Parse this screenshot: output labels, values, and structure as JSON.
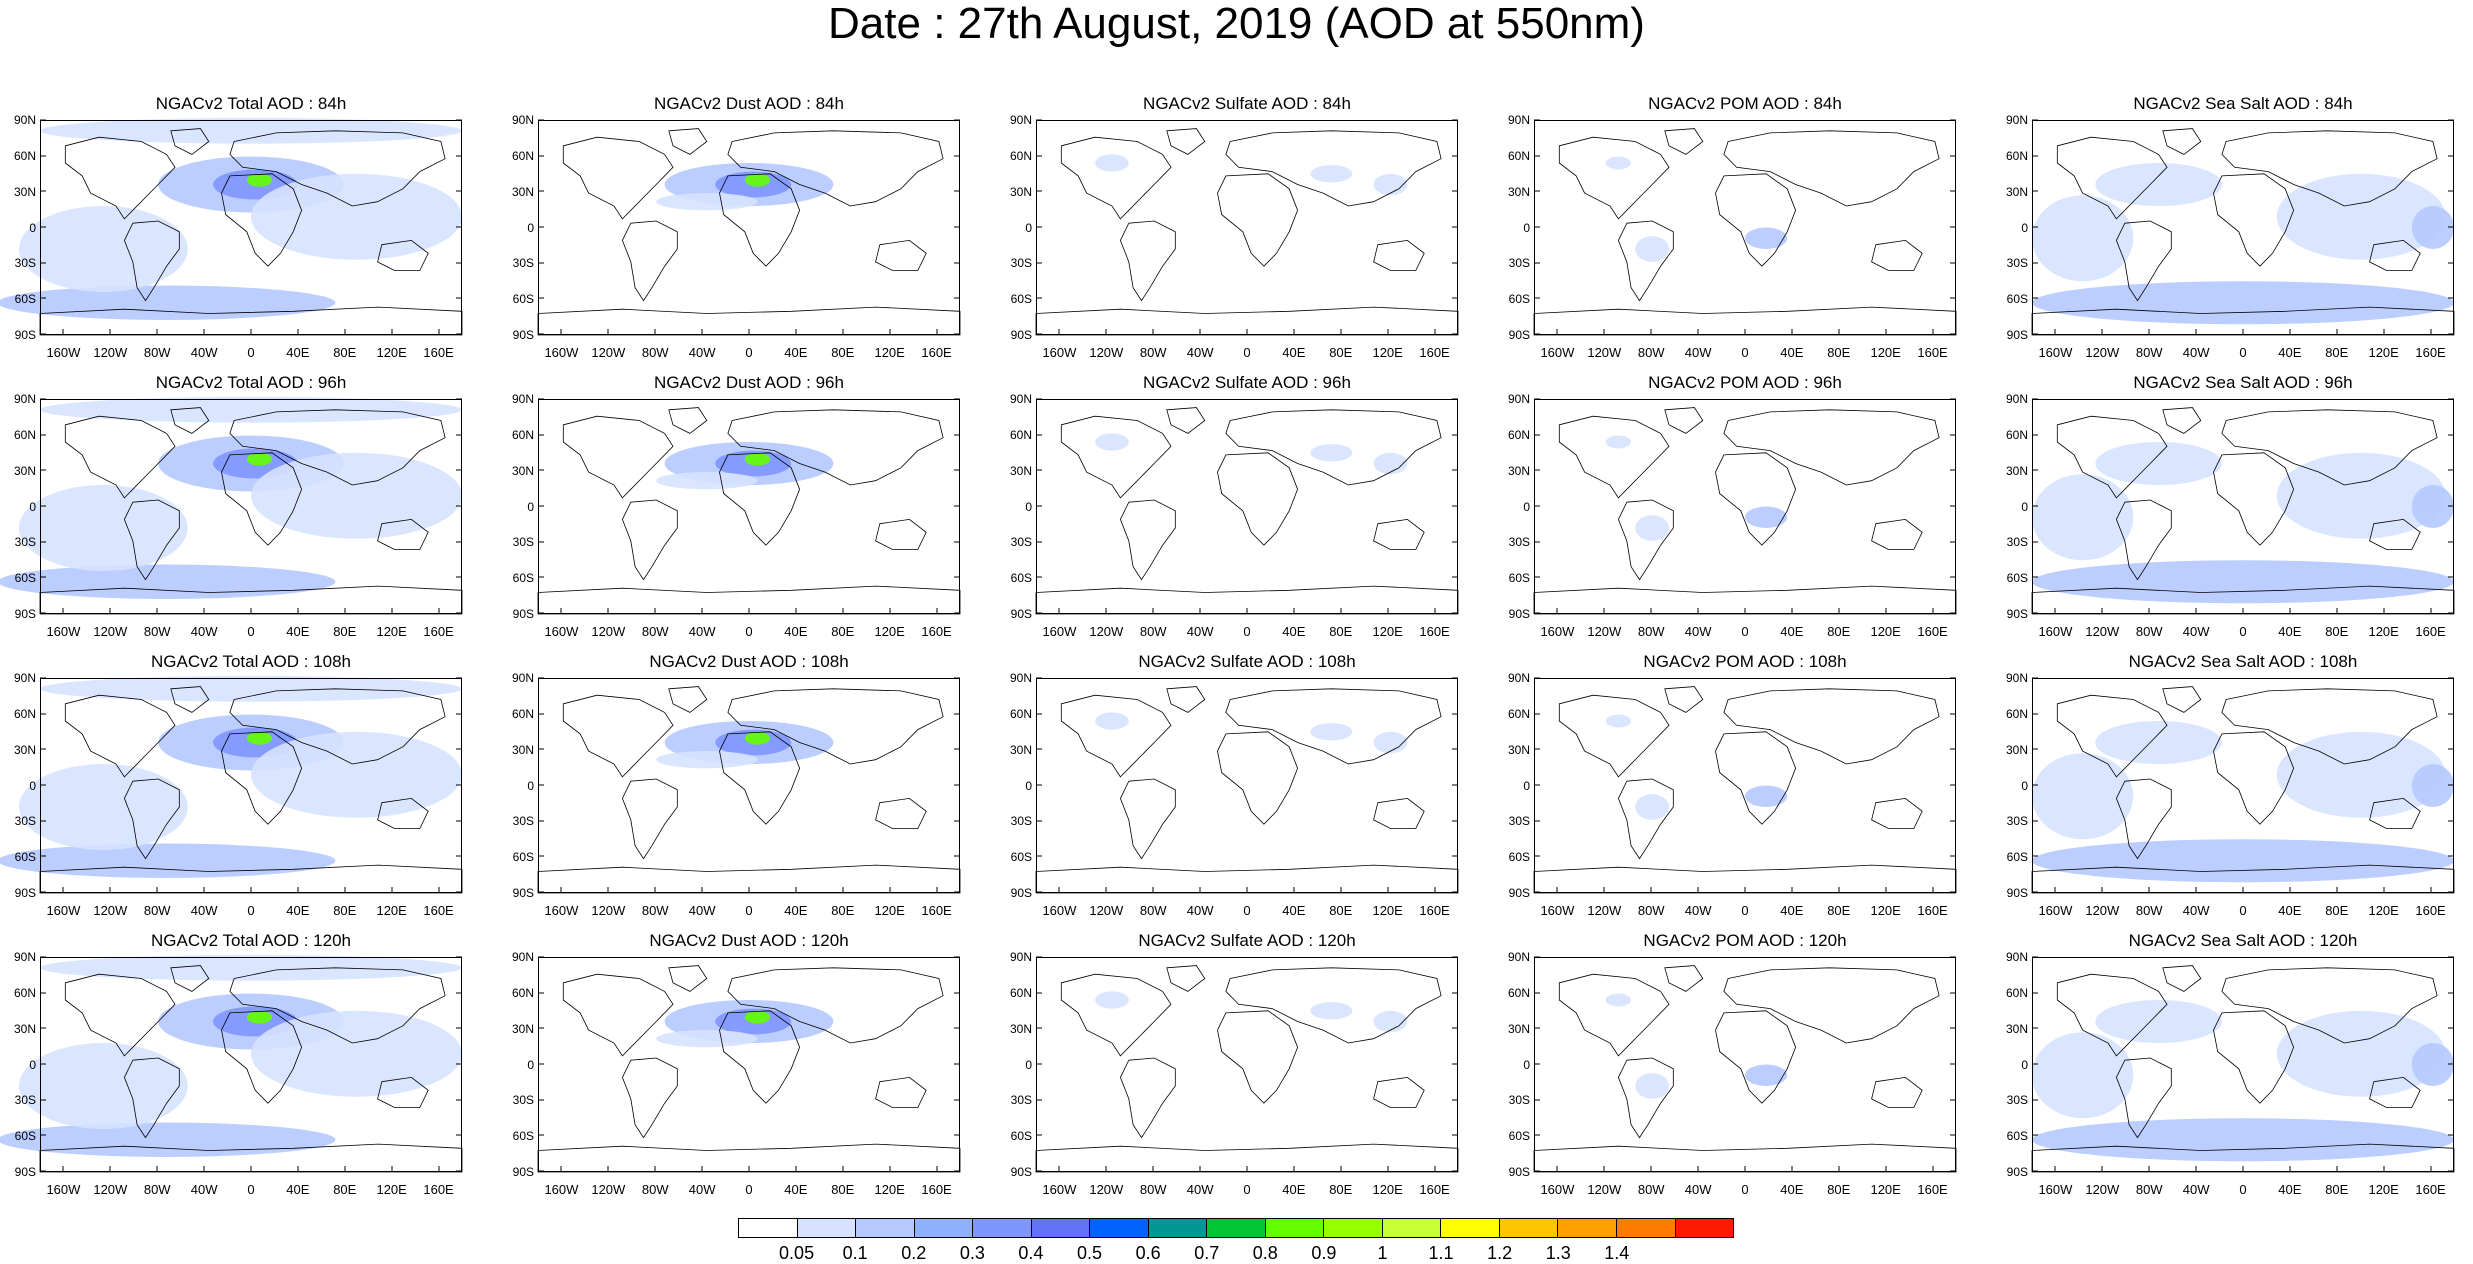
{
  "title": "Date : 27th August, 2019 (AOD at 550nm)",
  "rows": [
    [
      "NGACv2 Total AOD : 84h",
      "NGACv2 Dust AOD : 84h",
      "NGACv2 Sulfate AOD : 84h",
      "NGACv2 POM AOD : 84h",
      "NGACv2 Sea Salt AOD : 84h"
    ],
    [
      "NGACv2 Total AOD : 96h",
      "NGACv2 Dust AOD : 96h",
      "NGACv2 Sulfate AOD : 96h",
      "NGACv2 POM AOD : 96h",
      "NGACv2 Sea Salt AOD : 96h"
    ],
    [
      "NGACv2 Total AOD : 108h",
      "NGACv2 Dust AOD : 108h",
      "NGACv2 Sulfate AOD : 108h",
      "NGACv2 POM AOD : 108h",
      "NGACv2 Sea Salt AOD : 108h"
    ],
    [
      "NGACv2 Total AOD : 120h",
      "NGACv2 Dust AOD : 120h",
      "NGACv2 Sulfate AOD : 120h",
      "NGACv2 POM AOD : 120h",
      "NGACv2 Sea Salt  AOD : 120h"
    ]
  ],
  "lat_labels": [
    "90N",
    "60N",
    "30N",
    "0",
    "30S",
    "60S",
    "90S"
  ],
  "lon_labels": [
    "160W",
    "120W",
    "80W",
    "40W",
    "0",
    "40E",
    "80E",
    "120E",
    "160E"
  ],
  "colorbar": {
    "labels": [
      "0.05",
      "0.1",
      "0.2",
      "0.3",
      "0.4",
      "0.5",
      "0.6",
      "0.7",
      "0.8",
      "0.9",
      "1",
      "1.1",
      "1.2",
      "1.3",
      "1.4"
    ],
    "colors": [
      "#ffffff",
      "#d6e2ff",
      "#b5c9ff",
      "#8eb2ff",
      "#7f96ff",
      "#6370f8",
      "#0063ff",
      "#009696",
      "#00c633",
      "#63ff00",
      "#96ff00",
      "#c6ff33",
      "#ffff00",
      "#ffc600",
      "#ffa000",
      "#ff7c00",
      "#ff1900"
    ]
  },
  "colors": {
    "land": "#ffffff",
    "coast": "#000000",
    "aerosol_light": "#d6e2ff",
    "aerosol_mid": "#b5c9ff",
    "aerosol_dark": "#7f96ff",
    "aerosol_high": "#63ff00"
  }
}
